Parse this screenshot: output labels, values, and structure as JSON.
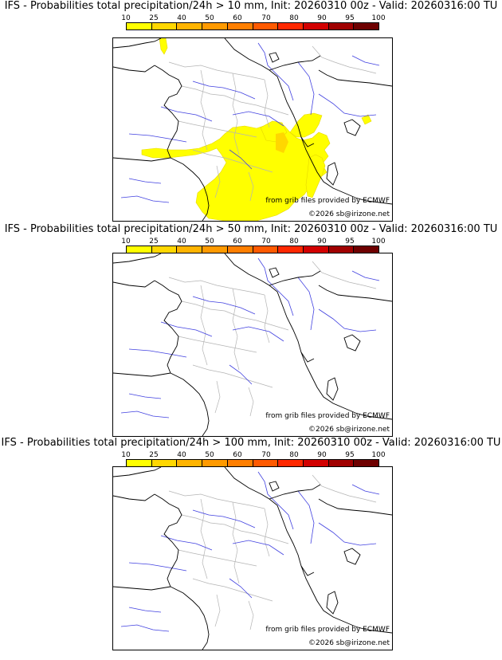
{
  "panels": [
    {
      "title": "IFS - Probabilities total precipitation/24h > 10 mm, Init: 20260310 00z - Valid: 20260316:00 TU",
      "has_precip": true
    },
    {
      "title": "IFS - Probabilities total precipitation/24h > 50 mm, Init: 20260310 00z - Valid: 20260316:00 TU",
      "has_precip": false
    },
    {
      "title": "IFS - Probabilities total precipitation/24h > 100 mm, Init: 20260310 00z - Valid: 20260316:00 TU",
      "has_precip": false
    }
  ],
  "scale": {
    "labels": [
      "10",
      "25",
      "40",
      "50",
      "60",
      "70",
      "80",
      "90",
      "95",
      "100"
    ],
    "colors": [
      "#ffff00",
      "#ffd700",
      "#ffb400",
      "#ff9a00",
      "#ff7f00",
      "#ff5a00",
      "#ff2800",
      "#d20000",
      "#a00000",
      "#6e0000"
    ]
  },
  "credits": {
    "grib": "from grib files provided by ECMWF",
    "copyright": "©2026 sb@irizone.net"
  }
}
